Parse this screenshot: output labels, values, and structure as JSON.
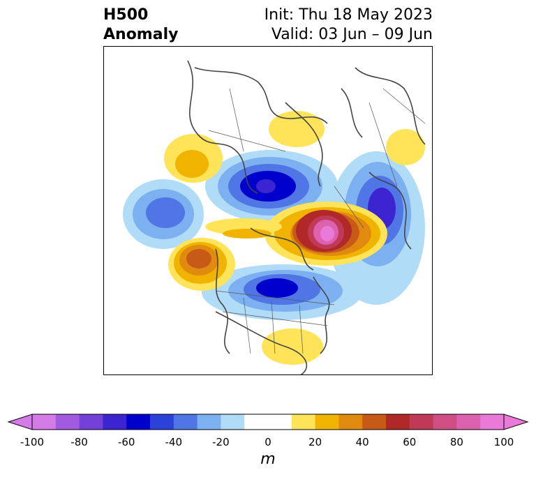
{
  "title": {
    "left_line1": "H500",
    "left_line2": "Anomaly",
    "right_line1": "Init: Thu 18 May 2023",
    "right_line2": "Valid: 03 Jun – 09 Jun"
  },
  "colorbar": {
    "unit": "m",
    "ticks": [
      "-100",
      "-80",
      "-60",
      "-40",
      "-20",
      "0",
      "20",
      "40",
      "60",
      "80",
      "100"
    ],
    "colors": [
      "#d37be6",
      "#a25be0",
      "#7341d8",
      "#3c25d0",
      "#0000cc",
      "#2a42d8",
      "#5075e4",
      "#7cb0f0",
      "#b0dcf8",
      "#ffffff",
      "#ffffff",
      "#ffe45a",
      "#f0b400",
      "#e08a10",
      "#c85a18",
      "#b02828",
      "#c03a58",
      "#cf4e84",
      "#dc62b0",
      "#ea7ad8"
    ],
    "under_color": "#d37be6",
    "over_color": "#ea7ad8"
  },
  "map": {
    "features": [
      "anomaly-contours",
      "coastlines",
      "country-borders",
      "state-province-borders"
    ]
  }
}
